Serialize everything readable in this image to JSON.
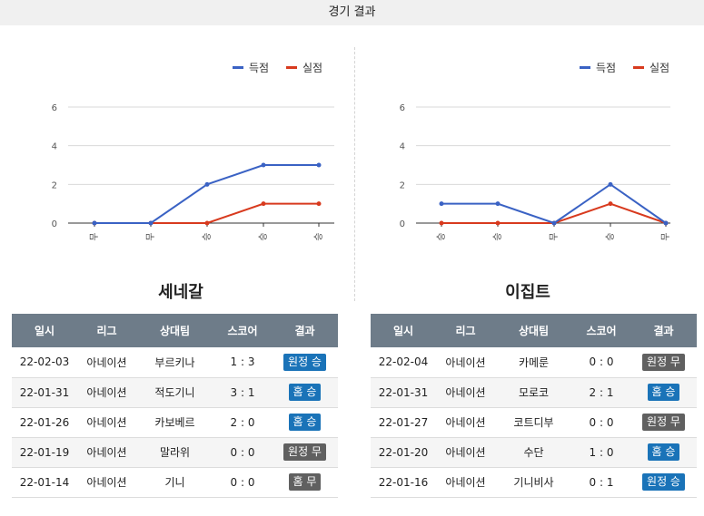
{
  "header": {
    "title": "경기 결과"
  },
  "colors": {
    "scored": "#3a62c4",
    "conceded": "#d83a1e",
    "badge_win": "#1a73b8",
    "badge_draw": "#606060",
    "table_header": "#6e7c89"
  },
  "legend": {
    "scored": "득점",
    "conceded": "실점"
  },
  "table_headers": [
    "일시",
    "리그",
    "상대팀",
    "스코어",
    "결과"
  ],
  "teams": [
    {
      "name": "세네갈",
      "chart_data": {
        "type": "line",
        "categories": [
          "무",
          "무",
          "승",
          "승",
          "승"
        ],
        "ylim": [
          0,
          6
        ],
        "yticks": [
          0,
          2,
          4,
          6
        ],
        "series": [
          {
            "name": "득점",
            "color": "#3a62c4",
            "values": [
              0,
              0,
              2,
              3,
              3
            ]
          },
          {
            "name": "실점",
            "color": "#d83a1e",
            "values": [
              0,
              0,
              0,
              1,
              1
            ]
          }
        ]
      },
      "matches": [
        {
          "date": "22-02-03",
          "league": "아네이션",
          "opponent": "부르키나",
          "score": "1 : 3",
          "result": "원정 승",
          "kind": "win"
        },
        {
          "date": "22-01-31",
          "league": "아네이션",
          "opponent": "적도기니",
          "score": "3 : 1",
          "result": "홈 승",
          "kind": "win"
        },
        {
          "date": "22-01-26",
          "league": "아네이션",
          "opponent": "카보베르",
          "score": "2 : 0",
          "result": "홈 승",
          "kind": "win"
        },
        {
          "date": "22-01-19",
          "league": "아네이션",
          "opponent": "말라위",
          "score": "0 : 0",
          "result": "원정 무",
          "kind": "draw"
        },
        {
          "date": "22-01-14",
          "league": "아네이션",
          "opponent": "기니",
          "score": "0 : 0",
          "result": "홈 무",
          "kind": "draw"
        }
      ]
    },
    {
      "name": "이집트",
      "chart_data": {
        "type": "line",
        "categories": [
          "승",
          "승",
          "무",
          "승",
          "무"
        ],
        "ylim": [
          0,
          6
        ],
        "yticks": [
          0,
          2,
          4,
          6
        ],
        "series": [
          {
            "name": "득점",
            "color": "#3a62c4",
            "values": [
              1,
              1,
              0,
              2,
              0
            ]
          },
          {
            "name": "실점",
            "color": "#d83a1e",
            "values": [
              0,
              0,
              0,
              1,
              0
            ]
          }
        ]
      },
      "matches": [
        {
          "date": "22-02-04",
          "league": "아네이션",
          "opponent": "카메룬",
          "score": "0 : 0",
          "result": "원정 무",
          "kind": "draw"
        },
        {
          "date": "22-01-31",
          "league": "아네이션",
          "opponent": "모로코",
          "score": "2 : 1",
          "result": "홈 승",
          "kind": "win"
        },
        {
          "date": "22-01-27",
          "league": "아네이션",
          "opponent": "코트디부",
          "score": "0 : 0",
          "result": "원정 무",
          "kind": "draw"
        },
        {
          "date": "22-01-20",
          "league": "아네이션",
          "opponent": "수단",
          "score": "1 : 0",
          "result": "홈 승",
          "kind": "win"
        },
        {
          "date": "22-01-16",
          "league": "아네이션",
          "opponent": "기니비사",
          "score": "0 : 1",
          "result": "원정 승",
          "kind": "win"
        }
      ]
    }
  ]
}
